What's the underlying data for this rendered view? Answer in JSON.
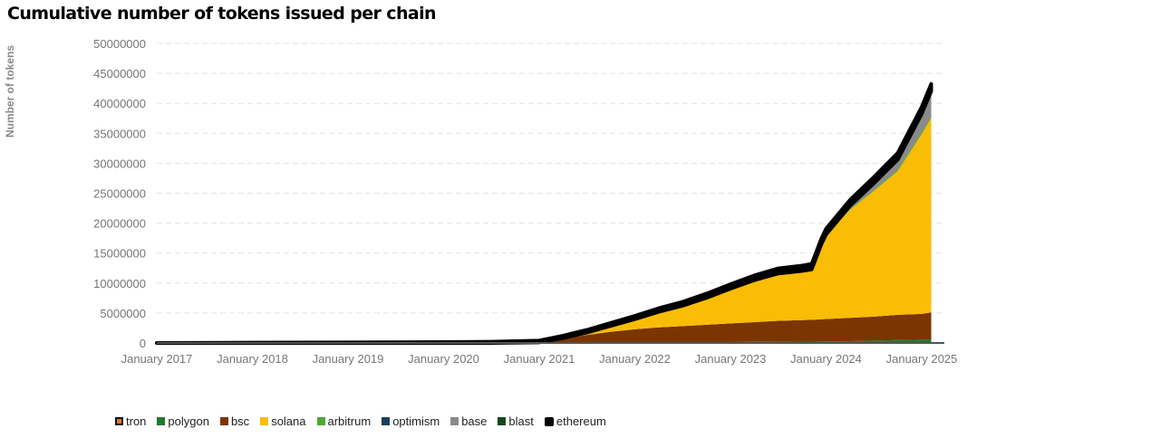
{
  "chart_data": {
    "type": "area",
    "stacked": true,
    "title": "Cumulative number of tokens issued per chain",
    "xlabel": "",
    "ylabel": "Number of tokens",
    "ylim": [
      0,
      50000000
    ],
    "yticks": [
      0,
      5000000,
      10000000,
      15000000,
      20000000,
      25000000,
      30000000,
      35000000,
      40000000,
      45000000,
      50000000
    ],
    "ytick_labels": [
      "0",
      "5000000",
      "10000000",
      "15000000",
      "20000000",
      "25000000",
      "30000000",
      "35000000",
      "40000000",
      "45000000",
      "50000000"
    ],
    "xticks": [
      "January 2017",
      "January 2018",
      "January 2019",
      "January 2020",
      "January 2021",
      "January 2022",
      "January 2023",
      "January 2024",
      "January 2025"
    ],
    "grid": true,
    "legend_position": "bottom-left",
    "x": [
      2017.0,
      2018.0,
      2019.0,
      2020.0,
      2020.5,
      2021.0,
      2021.25,
      2021.5,
      2021.75,
      2022.0,
      2022.25,
      2022.5,
      2022.75,
      2023.0,
      2023.25,
      2023.5,
      2023.75,
      2023.85,
      2023.95,
      2024.0,
      2024.25,
      2024.5,
      2024.75,
      2025.0,
      2025.1
    ],
    "series": [
      {
        "name": "tron",
        "color": "#e8742a",
        "values": [
          0,
          0,
          0,
          0,
          0,
          0,
          0,
          0,
          0,
          0,
          0,
          0,
          0,
          0,
          0,
          0,
          0,
          0,
          0,
          0,
          0,
          0,
          0,
          0,
          0
        ]
      },
      {
        "name": "polygon",
        "color": "#1f7a2e",
        "values": [
          0,
          0,
          0,
          0,
          0,
          0,
          20000,
          40000,
          60000,
          80000,
          100000,
          120000,
          140000,
          160000,
          180000,
          200000,
          220000,
          230000,
          240000,
          250000,
          300000,
          400000,
          500000,
          550000,
          600000
        ]
      },
      {
        "name": "bsc",
        "color": "#7b3503",
        "values": [
          0,
          0,
          0,
          0,
          0,
          100000,
          700000,
          1300000,
          1800000,
          2200000,
          2500000,
          2700000,
          2900000,
          3100000,
          3300000,
          3500000,
          3600000,
          3650000,
          3700000,
          3750000,
          3900000,
          4000000,
          4200000,
          4300000,
          4500000
        ]
      },
      {
        "name": "solana",
        "color": "#f9bd05",
        "values": [
          0,
          0,
          0,
          0,
          0,
          0,
          100000,
          400000,
          1000000,
          1700000,
          2600000,
          3400000,
          4500000,
          5800000,
          7000000,
          7900000,
          8200000,
          8400000,
          12500000,
          14000000,
          18000000,
          21000000,
          24000000,
          30000000,
          32500000
        ]
      },
      {
        "name": "arbitrum",
        "color": "#4ea832",
        "values": [
          0,
          0,
          0,
          0,
          0,
          0,
          0,
          0,
          0,
          0,
          0,
          0,
          0,
          0,
          0,
          0,
          0,
          0,
          0,
          50000,
          100000,
          150000,
          200000,
          250000,
          300000
        ]
      },
      {
        "name": "optimism",
        "color": "#1c3f5a",
        "values": [
          0,
          0,
          0,
          0,
          0,
          0,
          0,
          0,
          0,
          0,
          0,
          0,
          0,
          0,
          0,
          0,
          0,
          0,
          0,
          10000,
          20000,
          30000,
          40000,
          50000,
          60000
        ]
      },
      {
        "name": "base",
        "color": "#8a8a8a",
        "values": [
          0,
          0,
          0,
          0,
          0,
          0,
          0,
          0,
          0,
          0,
          0,
          0,
          0,
          0,
          0,
          0,
          0,
          0,
          0,
          50000,
          500000,
          1000000,
          1600000,
          3000000,
          4000000
        ]
      },
      {
        "name": "blast",
        "color": "#18481d",
        "values": [
          0,
          0,
          0,
          0,
          0,
          0,
          0,
          0,
          0,
          0,
          0,
          0,
          0,
          0,
          0,
          0,
          0,
          0,
          0,
          0,
          50000,
          60000,
          70000,
          80000,
          90000
        ]
      },
      {
        "name": "ethereum",
        "color": "#000000",
        "values": [
          0,
          50000,
          100000,
          150000,
          200000,
          300000,
          400000,
          450000,
          500000,
          550000,
          600000,
          650000,
          700000,
          750000,
          800000,
          850000,
          900000,
          920000,
          940000,
          960000,
          1000000,
          1050000,
          1100000,
          1150000,
          1200000
        ]
      }
    ]
  },
  "legend": [
    {
      "label": "tron",
      "color": "#e8742a"
    },
    {
      "label": "polygon",
      "color": "#1f7a2e"
    },
    {
      "label": "bsc",
      "color": "#7b3503"
    },
    {
      "label": "solana",
      "color": "#f9bd05"
    },
    {
      "label": "arbitrum",
      "color": "#4ea832"
    },
    {
      "label": "optimism",
      "color": "#1c3f5a"
    },
    {
      "label": "base",
      "color": "#8a8a8a"
    },
    {
      "label": "blast",
      "color": "#18481d"
    },
    {
      "label": "ethereum",
      "color": "#000000"
    }
  ]
}
